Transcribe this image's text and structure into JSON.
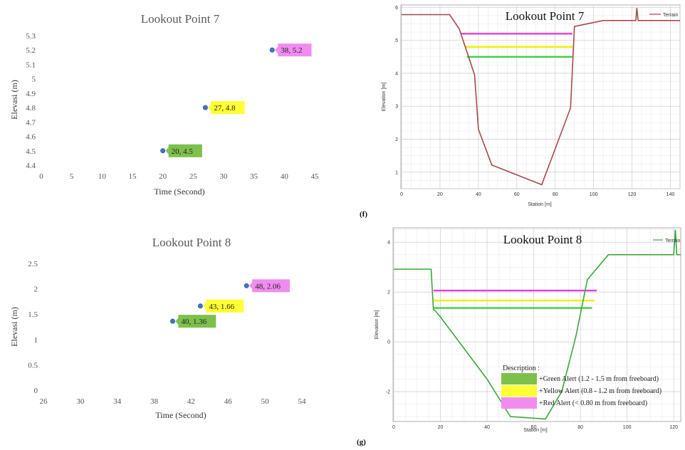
{
  "chart_data": [
    {
      "id": "scatter7",
      "type": "scatter",
      "title": "Lookout Point 7",
      "xlabel": "Time (Second)",
      "ylabel": "Elevasi (m)",
      "xlim": [
        0,
        45
      ],
      "ylim": [
        4.4,
        5.3
      ],
      "xticks": [
        "0",
        "5",
        "10",
        "15",
        "20",
        "25",
        "30",
        "35",
        "40",
        "45"
      ],
      "yticks": [
        "4.4",
        "4.5",
        "4.6",
        "4.7",
        "4.8",
        "4.9",
        "5",
        "5.1",
        "5.2",
        "5.3"
      ],
      "points": [
        {
          "x": 20,
          "y": 4.5,
          "label": "20, 4.5",
          "color": "#7dc04b"
        },
        {
          "x": 27,
          "y": 4.8,
          "label": "27, 4.8",
          "color": "#ffff33"
        },
        {
          "x": 38,
          "y": 5.2,
          "label": "38, 5.2",
          "color": "#f08cf0"
        }
      ]
    },
    {
      "id": "scatter8",
      "type": "scatter",
      "title": "Lookout Point 8",
      "xlabel": "Time (Second)",
      "ylabel": "Elevasi (m)",
      "xlim": [
        26,
        54
      ],
      "ylim": [
        0,
        2.5
      ],
      "xticks": [
        "26",
        "30",
        "34",
        "38",
        "42",
        "46",
        "50",
        "54"
      ],
      "yticks": [
        "0",
        "0.5",
        "1",
        "1.5",
        "2",
        "2.5"
      ],
      "points": [
        {
          "x": 40,
          "y": 1.36,
          "label": "40, 1.36",
          "color": "#7dc04b"
        },
        {
          "x": 43,
          "y": 1.66,
          "label": "43, 1.66",
          "color": "#ffff33"
        },
        {
          "x": 48,
          "y": 2.06,
          "label": "48, 2.06",
          "color": "#f08cf0"
        }
      ]
    },
    {
      "id": "profile7",
      "type": "line",
      "title": "Lookout Point 7",
      "xlabel": "Station [m]",
      "ylabel": "Elevation [m]",
      "xlim": [
        0,
        145
      ],
      "ylim": [
        0.5,
        6.05
      ],
      "xticks": [
        0,
        20,
        40,
        60,
        80,
        100,
        120,
        140
      ],
      "xticklabels": [
        "0",
        "20",
        "40",
        "60",
        "80",
        "100",
        "120",
        "140"
      ],
      "yticks": [
        1,
        2,
        3,
        4,
        5,
        6
      ],
      "series": [
        {
          "name": "Terrain",
          "color": "#a84a4a",
          "x": [
            0,
            25,
            30,
            38,
            40,
            47,
            73,
            88,
            90,
            105,
            122,
            122.5,
            123.2,
            124,
            145
          ],
          "y": [
            5.78,
            5.78,
            5.35,
            3.95,
            2.3,
            1.22,
            0.62,
            2.95,
            5.42,
            5.6,
            5.6,
            5.98,
            5.6,
            5.6,
            5.6
          ]
        }
      ],
      "alert_lines": [
        {
          "y": 5.2,
          "x0": 31,
          "x1": 89,
          "color": "#e040e0"
        },
        {
          "y": 4.8,
          "x0": 33,
          "x1": 89,
          "color": "#f0f000"
        },
        {
          "y": 4.5,
          "x0": 34,
          "x1": 89,
          "color": "#40d040"
        }
      ]
    },
    {
      "id": "profile8",
      "type": "line",
      "title": "Lookout Point 8",
      "xlabel": "Station [m]",
      "ylabel": "Elevation [m]",
      "xlim": [
        0,
        123
      ],
      "ylim": [
        -3.2,
        4.55
      ],
      "xticks": [
        0,
        20,
        40,
        60,
        80,
        100,
        120
      ],
      "xticklabels": [
        "0",
        "20",
        "40",
        "60",
        "80",
        "100",
        "120"
      ],
      "yticks": [
        -2,
        0,
        2,
        4
      ],
      "series": [
        {
          "name": "Terrain",
          "color": "#3aa83a",
          "x": [
            0,
            16,
            17,
            18,
            20,
            40,
            50,
            65,
            72,
            78,
            83,
            92,
            120,
            120.7,
            121.3,
            123
          ],
          "y": [
            2.92,
            2.92,
            1.3,
            1.22,
            1.0,
            -1.5,
            -3.0,
            -3.1,
            -2.0,
            0.2,
            2.5,
            3.5,
            3.5,
            4.5,
            3.5,
            3.5
          ]
        }
      ],
      "alert_lines": [
        {
          "y": 2.06,
          "x0": 17,
          "x1": 87,
          "color": "#e040e0"
        },
        {
          "y": 1.66,
          "x0": 17,
          "x1": 86,
          "color": "#f0f000"
        },
        {
          "y": 1.36,
          "x0": 17,
          "x1": 85,
          "color": "#40d040"
        }
      ],
      "legend": {
        "title": "Description :",
        "items": [
          {
            "label": "Green Alert (1.2 - 1.5 m from freeboard)",
            "color": "#7dc04b"
          },
          {
            "label": "Yellow Alert (0.8 - 1.2 m from freeboard)",
            "color": "#ffff33"
          },
          {
            "label": "Red Alert (< 0.80 m from freeboard)",
            "color": "#f08cf0"
          }
        ]
      }
    }
  ],
  "captions": {
    "f": "(f)",
    "g": "(g)"
  }
}
